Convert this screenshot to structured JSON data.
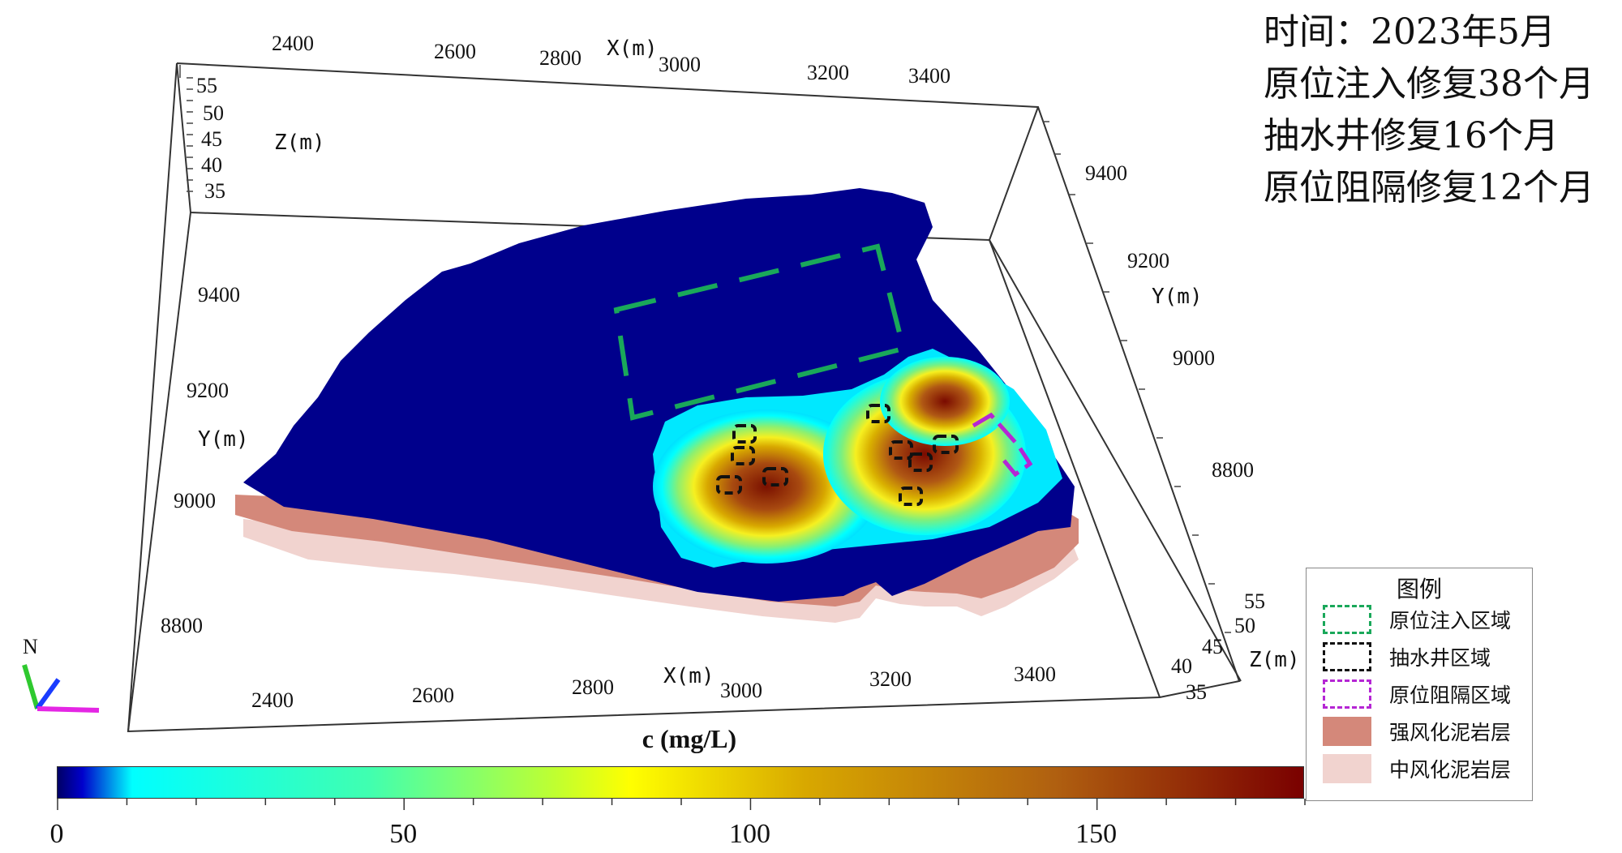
{
  "info": {
    "line1": "时间：2023年5月",
    "line2": "原位注入修复38个月",
    "line3": "抽水井修复16个月",
    "line4": "原位阻隔修复12个月"
  },
  "axes": {
    "x_title": "X(m)",
    "y_title": "Y(m)",
    "z_title": "Z(m)",
    "x_ticks": [
      "2400",
      "2600",
      "2800",
      "3000",
      "3200",
      "3400"
    ],
    "y_ticks": [
      "8800",
      "9000",
      "9200",
      "9400"
    ],
    "z_ticks": [
      "35",
      "40",
      "45",
      "50",
      "55"
    ],
    "north_label": "N"
  },
  "colorbar": {
    "title": "c (mg/L)",
    "ticks": [
      "0",
      "50",
      "100",
      "150"
    ],
    "min": 0,
    "max": 180,
    "colormap": [
      "#000066",
      "#0000cc",
      "#00ffff",
      "#ffff00",
      "#c08000",
      "#7a0000"
    ]
  },
  "legend": {
    "title": "图例",
    "items": [
      {
        "label": "原位注入区域",
        "style": "dashed",
        "color": "#1aa85a"
      },
      {
        "label": "抽水井区域",
        "style": "dashed",
        "color": "#111111"
      },
      {
        "label": "原位阻隔区域",
        "style": "dashed",
        "color": "#b526d4"
      },
      {
        "label": "强风化泥岩层",
        "style": "fill",
        "color": "#d4887a"
      },
      {
        "label": "中风化泥岩层",
        "style": "fill",
        "color": "#f1d3cf"
      }
    ]
  }
}
